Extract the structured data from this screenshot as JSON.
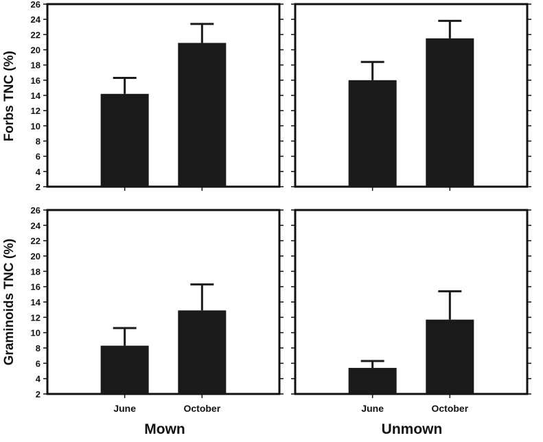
{
  "figure": {
    "row_labels": [
      "Forbs TNC (%)",
      "Graminoids TNC (%)"
    ],
    "group_labels": [
      "Mown",
      "Unmown"
    ]
  },
  "chart_data": [
    {
      "type": "bar",
      "panel": "Mown - Forbs",
      "categories": [
        "June",
        "October"
      ],
      "values": [
        14.2,
        20.9
      ],
      "errors": [
        2.1,
        2.5
      ],
      "ylim": [
        2,
        26
      ],
      "yticks": [
        2,
        4,
        6,
        8,
        10,
        12,
        14,
        16,
        18,
        20,
        22,
        24,
        26
      ],
      "ylabel": "Forbs TNC (%)",
      "xlabel": "",
      "show_x_tick_labels": false,
      "bar_color": "#1a1a1a",
      "grid": false
    },
    {
      "type": "bar",
      "panel": "Unmown - Forbs",
      "categories": [
        "June",
        "October"
      ],
      "values": [
        16.0,
        21.5
      ],
      "errors": [
        2.4,
        2.3
      ],
      "ylim": [
        2,
        26
      ],
      "yticks": [],
      "ylabel": "",
      "xlabel": "",
      "show_x_tick_labels": false,
      "bar_color": "#1a1a1a",
      "grid": false
    },
    {
      "type": "bar",
      "panel": "Mown - Graminoids",
      "categories": [
        "June",
        "October"
      ],
      "values": [
        8.3,
        12.9
      ],
      "errors": [
        2.3,
        3.4
      ],
      "ylim": [
        2,
        26
      ],
      "yticks": [
        2,
        4,
        6,
        8,
        10,
        12,
        14,
        16,
        18,
        20,
        22,
        24,
        26
      ],
      "ylabel": "Graminoids TNC (%)",
      "xlabel": "Mown",
      "show_x_tick_labels": true,
      "bar_color": "#1a1a1a",
      "grid": false
    },
    {
      "type": "bar",
      "panel": "Unmown - Graminoids",
      "categories": [
        "June",
        "October"
      ],
      "values": [
        5.4,
        11.7
      ],
      "errors": [
        0.9,
        3.7
      ],
      "ylim": [
        2,
        26
      ],
      "yticks": [],
      "ylabel": "",
      "xlabel": "Unmown",
      "show_x_tick_labels": true,
      "bar_color": "#1a1a1a",
      "grid": false
    }
  ]
}
